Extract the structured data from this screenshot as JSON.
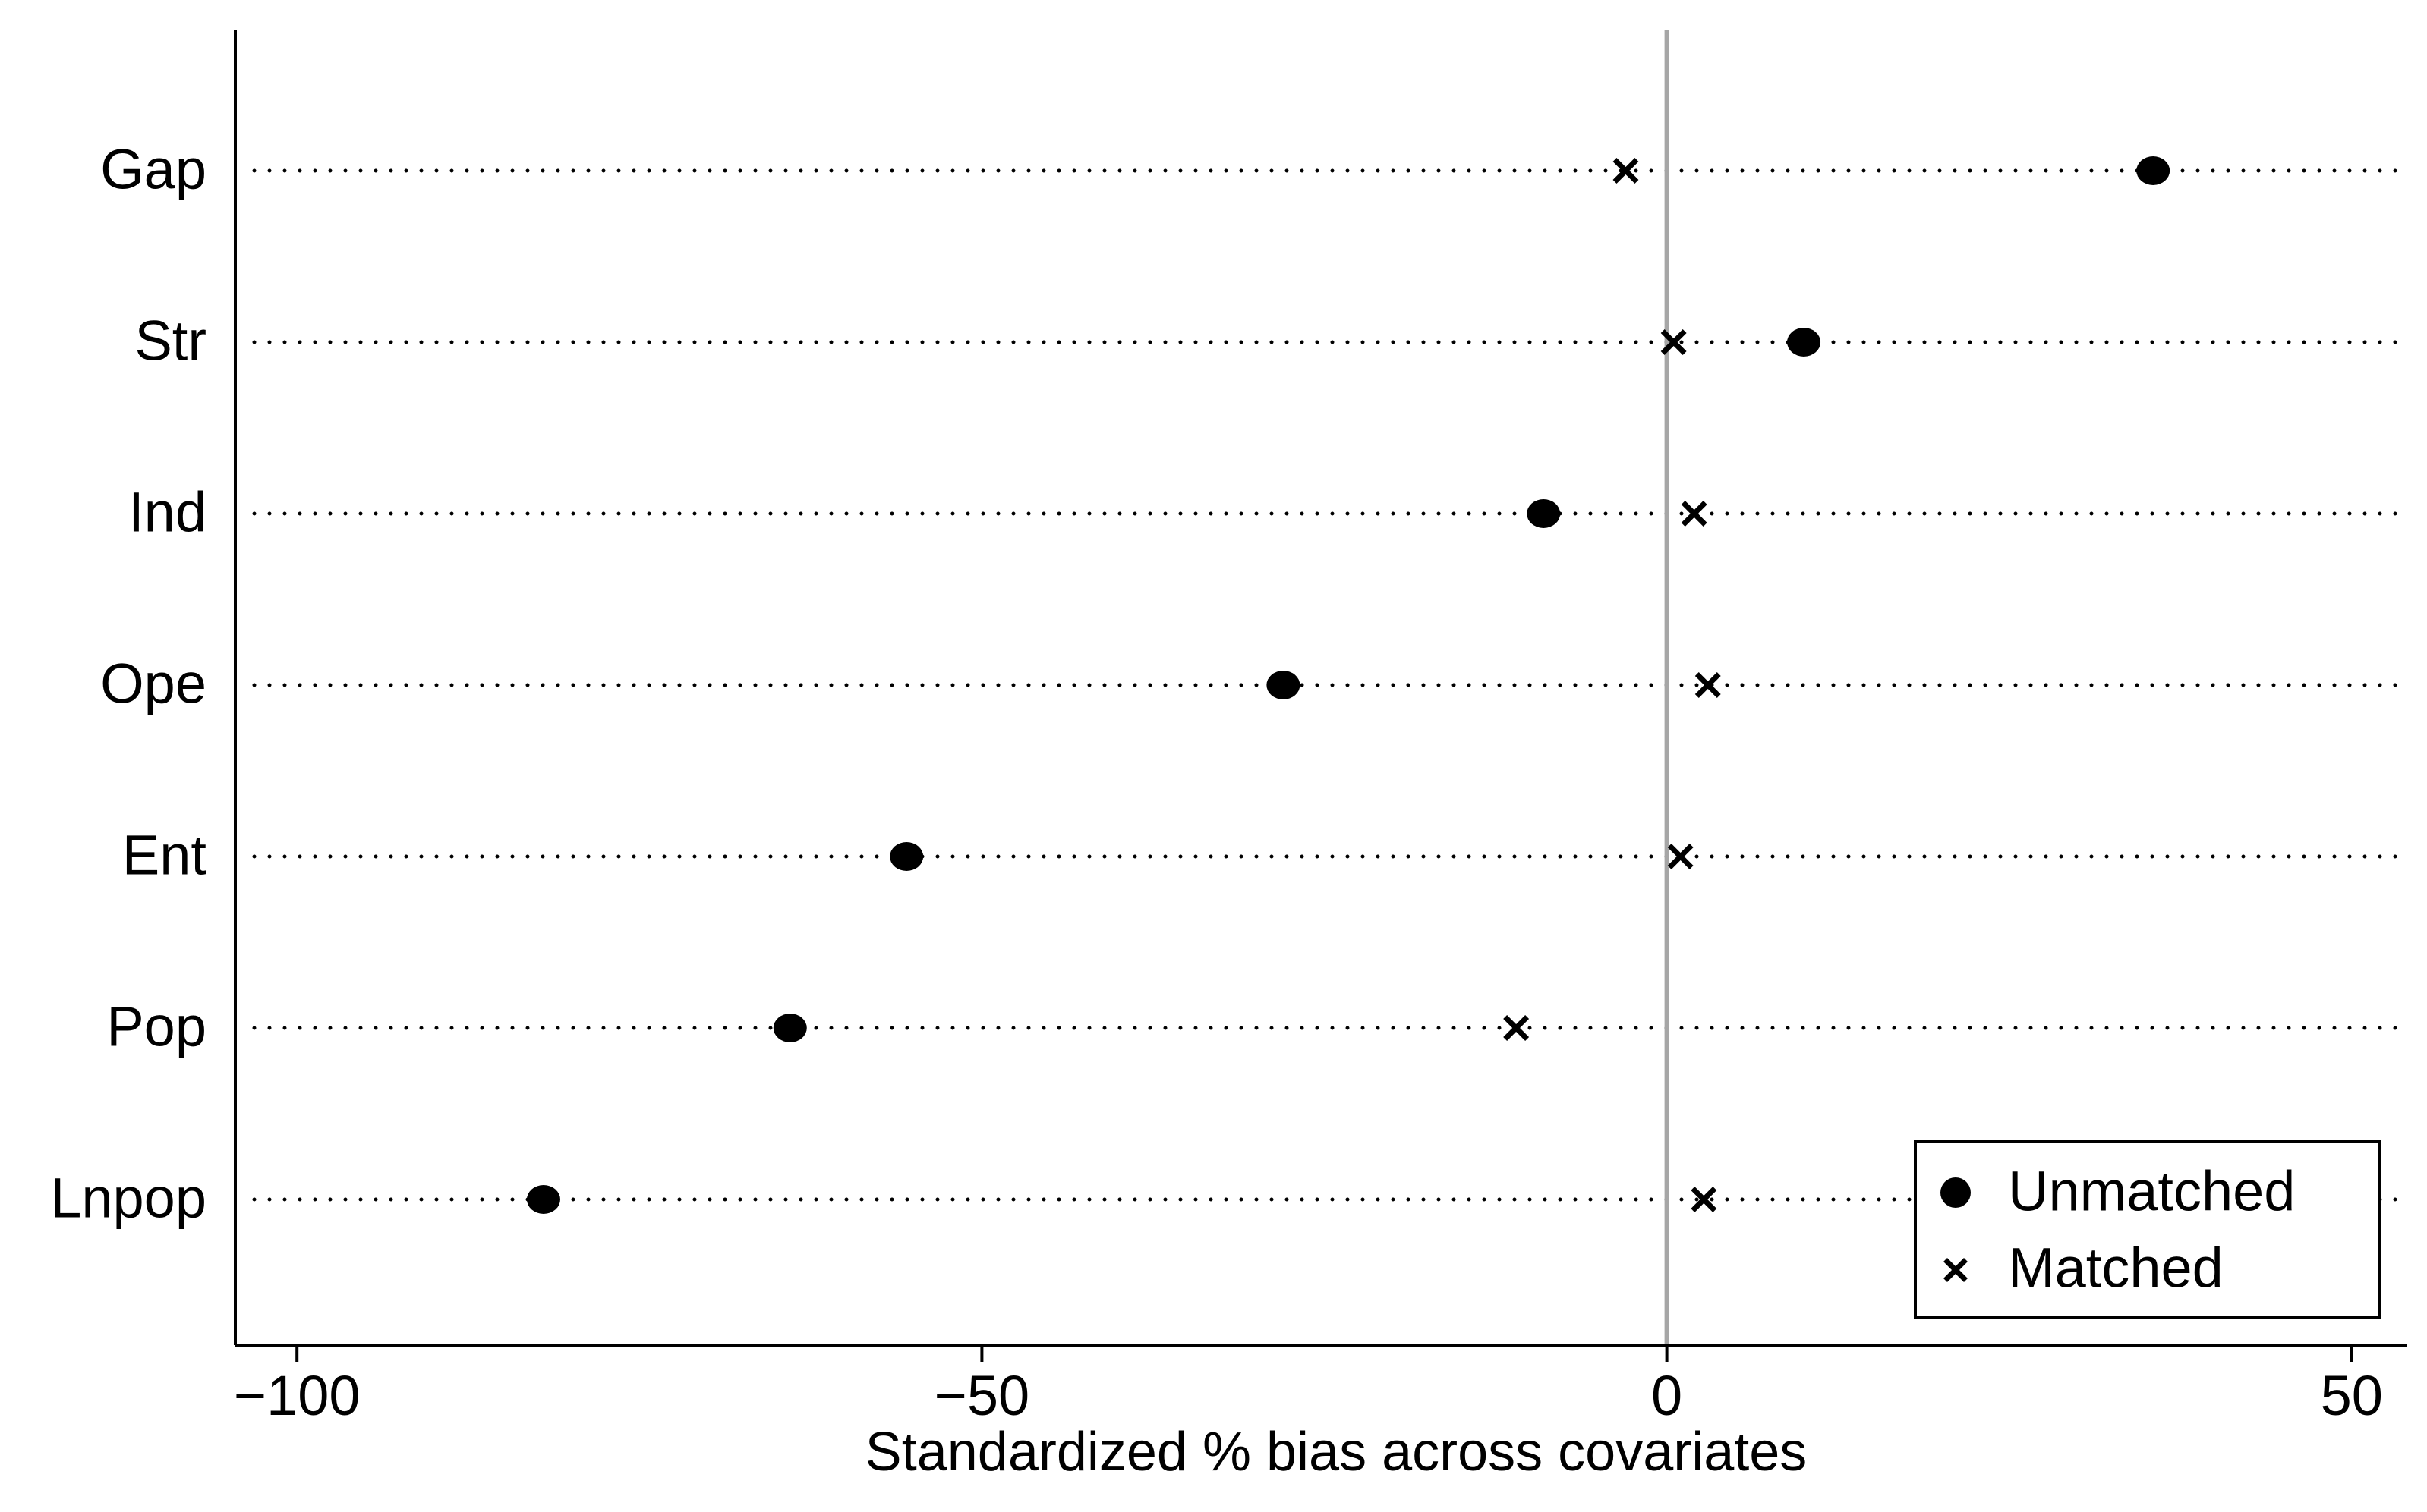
{
  "chart_data": {
    "type": "scatter",
    "categories": [
      "Gap",
      "Str",
      "Ind",
      "Ope",
      "Ent",
      "Pop",
      "Lnpop"
    ],
    "series": [
      {
        "name": "Unmatched",
        "marker": "filled-circle",
        "values": [
          35.5,
          10,
          -9,
          -28,
          -55.5,
          -64,
          -82
        ]
      },
      {
        "name": "Matched",
        "marker": "x-cross",
        "values": [
          -3,
          0.5,
          2,
          3,
          1,
          -11,
          2.7
        ]
      }
    ],
    "xlabel": "Standardized % bias across covariates",
    "ylabel": "",
    "xlim": [
      -104.5,
      54
    ],
    "xticks": [
      -100,
      -50,
      0,
      50
    ],
    "xtick_labels": [
      "−100",
      "−50",
      "0",
      "50"
    ],
    "reference_line_x": 0,
    "reference_line_color": "#a6a6a6",
    "marker_color": "#000000",
    "legend_position": "bottom-right",
    "grid": false
  }
}
